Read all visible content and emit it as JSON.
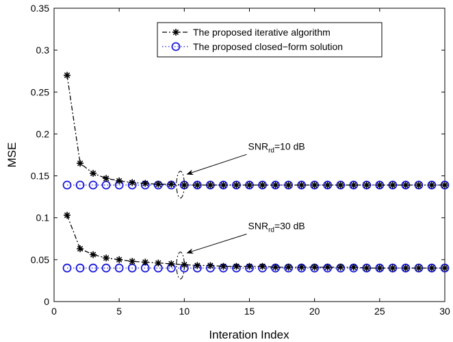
{
  "chart_data": {
    "type": "line",
    "xlabel": "Interation Index",
    "ylabel": "MSE",
    "xlim": [
      0,
      30
    ],
    "ylim": [
      0,
      0.35
    ],
    "x_ticks": [
      0,
      5,
      10,
      15,
      20,
      25,
      30
    ],
    "x_tick_labels": [
      "0",
      "5",
      "10",
      "15",
      "20",
      "25",
      "30"
    ],
    "y_ticks": [
      0,
      0.05,
      0.1,
      0.15,
      0.2,
      0.25,
      0.3,
      0.35
    ],
    "y_tick_labels": [
      "0",
      "0.05",
      "0.1",
      "0.15",
      "0.2",
      "0.25",
      "0.3",
      "0.35"
    ],
    "grid": false,
    "legend_position": "top-center",
    "x": [
      1,
      2,
      3,
      4,
      5,
      6,
      7,
      8,
      9,
      10,
      11,
      12,
      13,
      14,
      15,
      16,
      17,
      18,
      19,
      20,
      21,
      22,
      23,
      24,
      25,
      26,
      27,
      28,
      29,
      30
    ],
    "series": [
      {
        "name": "The proposed iterative algorithm",
        "group": "snr10",
        "style": "dashdot-star",
        "color": "#000000",
        "in_legend": true,
        "values": [
          0.27,
          0.165,
          0.153,
          0.147,
          0.144,
          0.142,
          0.141,
          0.14,
          0.14,
          0.139,
          0.139,
          0.139,
          0.139,
          0.139,
          0.139,
          0.139,
          0.139,
          0.139,
          0.139,
          0.139,
          0.139,
          0.139,
          0.139,
          0.139,
          0.139,
          0.139,
          0.139,
          0.139,
          0.139,
          0.139
        ]
      },
      {
        "name": "The proposed closed−form solution",
        "group": "snr10",
        "style": "dotted-circle",
        "color": "#1a1adb",
        "in_legend": true,
        "values": [
          0.139,
          0.139,
          0.139,
          0.139,
          0.139,
          0.139,
          0.139,
          0.139,
          0.139,
          0.139,
          0.139,
          0.139,
          0.139,
          0.139,
          0.139,
          0.139,
          0.139,
          0.139,
          0.139,
          0.139,
          0.139,
          0.139,
          0.139,
          0.139,
          0.139,
          0.139,
          0.139,
          0.139,
          0.139,
          0.139
        ]
      },
      {
        "name": "",
        "group": "snr30",
        "style": "dashdot-star",
        "color": "#000000",
        "in_legend": false,
        "values": [
          0.103,
          0.063,
          0.056,
          0.052,
          0.05,
          0.048,
          0.047,
          0.046,
          0.045,
          0.044,
          0.043,
          0.043,
          0.042,
          0.042,
          0.042,
          0.042,
          0.041,
          0.041,
          0.041,
          0.041,
          0.041,
          0.041,
          0.041,
          0.04,
          0.04,
          0.04,
          0.04,
          0.04,
          0.04,
          0.04
        ]
      },
      {
        "name": "",
        "group": "snr30",
        "style": "dotted-circle",
        "color": "#1a1adb",
        "in_legend": false,
        "values": [
          0.04,
          0.04,
          0.04,
          0.04,
          0.04,
          0.04,
          0.04,
          0.04,
          0.04,
          0.04,
          0.04,
          0.04,
          0.04,
          0.04,
          0.04,
          0.04,
          0.04,
          0.04,
          0.04,
          0.04,
          0.04,
          0.04,
          0.04,
          0.04,
          0.04,
          0.04,
          0.04,
          0.04,
          0.04,
          0.04
        ]
      }
    ],
    "annotations": [
      {
        "id": "snr10",
        "text_main": "SNR",
        "text_sub": "rd",
        "text_tail": "=10 dB",
        "arrow_target": [
          10.0,
          0.152
        ],
        "label_anchor": [
          15.0,
          0.178
        ],
        "ellipse_center": [
          9.7,
          0.1395
        ],
        "ellipse_radius": [
          0.3,
          0.016
        ]
      },
      {
        "id": "snr30",
        "text_main": "SNR",
        "text_sub": "rd",
        "text_tail": "=30 dB",
        "arrow_target": [
          10.0,
          0.058
        ],
        "label_anchor": [
          15.0,
          0.083
        ],
        "ellipse_center": [
          9.7,
          0.043
        ],
        "ellipse_radius": [
          0.3,
          0.016
        ]
      }
    ]
  }
}
